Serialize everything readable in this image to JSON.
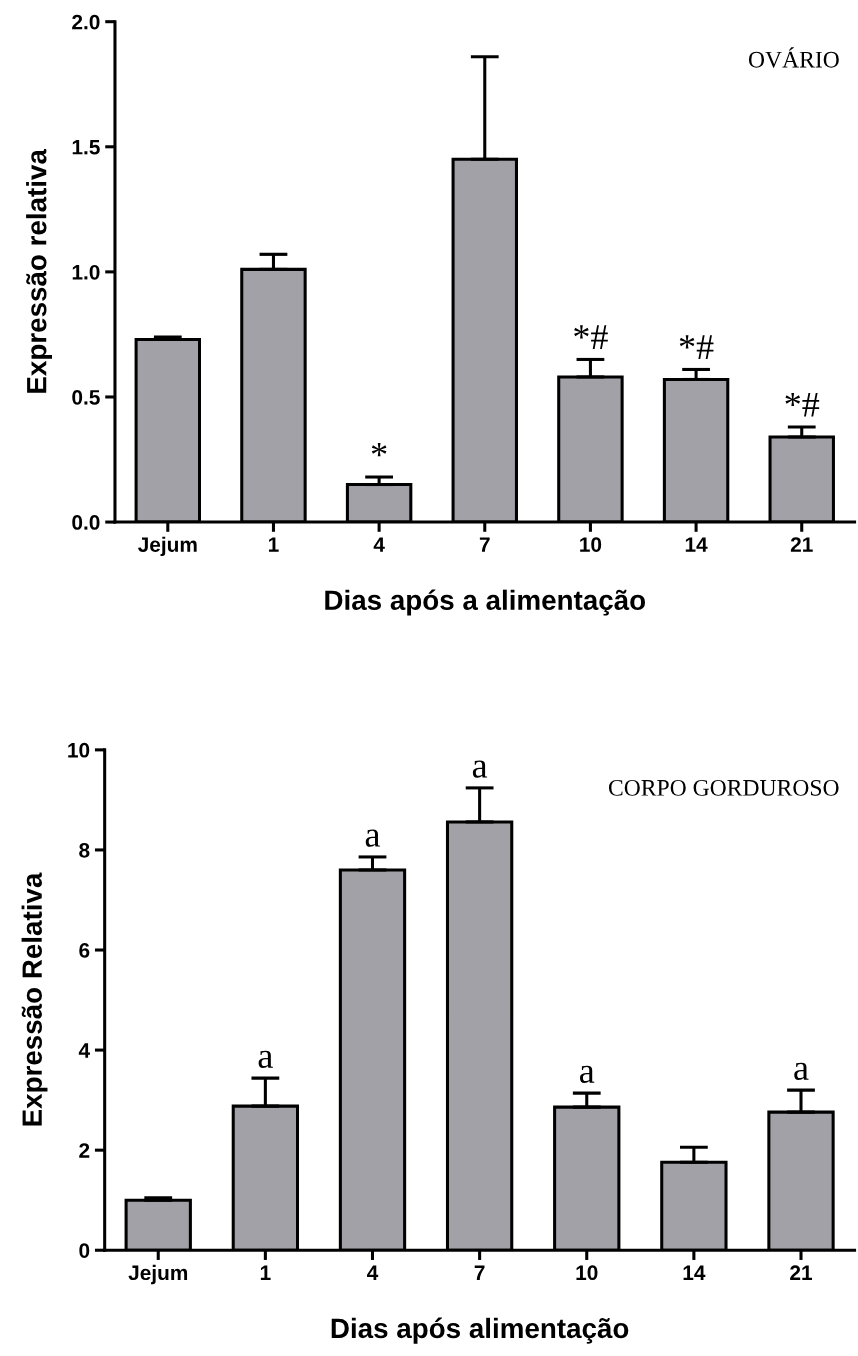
{
  "chart_data": [
    {
      "type": "bar",
      "xlabel": "Dias após a alimentação",
      "ylabel": "Expressão relativa",
      "categories": [
        "Jejum",
        "1",
        "4",
        "7",
        "10",
        "14",
        "21"
      ],
      "values": [
        0.73,
        1.01,
        0.15,
        1.45,
        0.58,
        0.57,
        0.34
      ],
      "errors": [
        [
          0.73,
          0.74
        ],
        [
          1.01,
          1.07
        ],
        [
          0.15,
          0.18
        ],
        [
          1.45,
          1.86
        ],
        [
          0.58,
          0.65
        ],
        [
          0.57,
          0.61
        ],
        [
          0.34,
          0.38
        ]
      ],
      "color": "#a2a1a8",
      "ylim": [
        0,
        2.0
      ],
      "yticks": [
        {
          "value": 0,
          "label": "0.0"
        },
        0.5,
        {
          "value": 1,
          "label": "1.0"
        },
        1.5,
        {
          "value": 2,
          "label": "2.0"
        }
      ],
      "grid": false,
      "legend": false,
      "annotations": [
        "OVÁRIO",
        {
          "text": "*",
          "x": "4",
          "y": 0.18
        },
        {
          "text": "*#",
          "x": "10",
          "y": 0.65
        },
        {
          "text": "*#",
          "x": "14",
          "y": 0.61
        },
        {
          "text": "*#",
          "x": "21",
          "y": 0.38
        }
      ]
    },
    {
      "type": "bar",
      "xlabel": "Dias após alimentação",
      "ylabel": "Expressão Relativa",
      "categories": [
        "Jejum",
        "1",
        "4",
        "7",
        "10",
        "14",
        "21"
      ],
      "values": [
        1.0,
        2.88,
        7.6,
        8.56,
        2.86,
        1.76,
        2.76
      ],
      "errors": [
        [
          1.0,
          1.05
        ],
        [
          2.88,
          3.44
        ],
        [
          7.6,
          7.86
        ],
        [
          8.56,
          9.24
        ],
        [
          2.86,
          3.14
        ],
        [
          1.76,
          2.06
        ],
        [
          2.76,
          3.2
        ]
      ],
      "color": "#a2a1a8",
      "ylim": [
        0,
        10
      ],
      "yticks": [
        0,
        2,
        4,
        6,
        8,
        10
      ],
      "grid": false,
      "legend": false,
      "annotations": [
        "CORPO GORDUROSO",
        {
          "text": "a",
          "x": "1",
          "y": 3.44
        },
        {
          "text": "a",
          "x": "4",
          "y": 7.86
        },
        {
          "text": "a",
          "x": "7",
          "y": 9.24
        },
        {
          "text": "a",
          "x": "10",
          "y": 3.14
        },
        {
          "text": "a",
          "x": "21",
          "y": 3.2
        }
      ]
    }
  ]
}
